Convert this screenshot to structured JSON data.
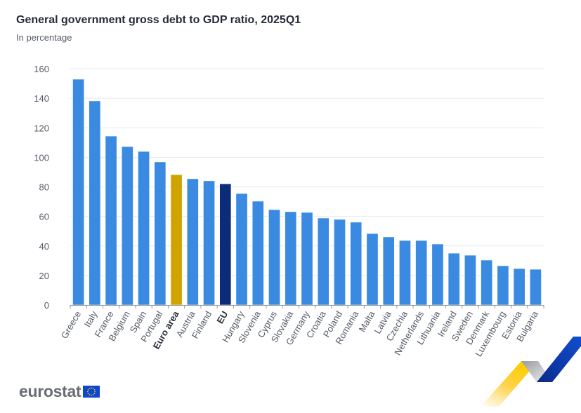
{
  "header": {
    "title": "General government gross debt to GDP ratio, 2025Q1",
    "subtitle": "In percentage"
  },
  "branding": {
    "logo_text": "eurostat",
    "flag": "eu-flag-icon",
    "decoration": "eurostat-ribbon-graphic"
  },
  "colors": {
    "country": "#3a8ae2",
    "euro_area": "#cfa400",
    "eu": "#0b2d79",
    "grid": "#e4e9f2",
    "axis": "#999999",
    "tick_text": "#555a66"
  },
  "chart_data": {
    "type": "bar",
    "title": "General government gross debt to GDP ratio, 2025Q1",
    "subtitle": "In percentage",
    "xlabel": "",
    "ylabel": "",
    "ylim": [
      0,
      160
    ],
    "yticks": [
      0,
      20,
      40,
      60,
      80,
      100,
      120,
      140,
      160
    ],
    "grid": true,
    "legend": "none",
    "categories": [
      "Greece",
      "Italy",
      "France",
      "Belgium",
      "Spain",
      "Portugal",
      "Euro area",
      "Austria",
      "Finland",
      "EU",
      "Hungary",
      "Slovenia",
      "Cyprus",
      "Slovakia",
      "Germany",
      "Croatia",
      "Poland",
      "Romania",
      "Malta",
      "Latvia",
      "Czechia",
      "Netherlands",
      "Lithuania",
      "Ireland",
      "Sweden",
      "Denmark",
      "Luxembourg",
      "Estonia",
      "Bulgaria"
    ],
    "values": [
      152.9,
      138.2,
      114.4,
      107.3,
      104.0,
      96.9,
      88.3,
      85.5,
      84.1,
      82.1,
      75.5,
      70.3,
      64.6,
      63.2,
      62.7,
      58.9,
      58.0,
      56.1,
      48.4,
      46.1,
      43.7,
      43.7,
      41.3,
      35.1,
      33.7,
      30.4,
      26.6,
      24.7,
      24.2
    ],
    "highlight": {
      "Euro area": "euro_area",
      "EU": "eu"
    },
    "bold_labels": [
      "Euro area",
      "EU"
    ]
  }
}
